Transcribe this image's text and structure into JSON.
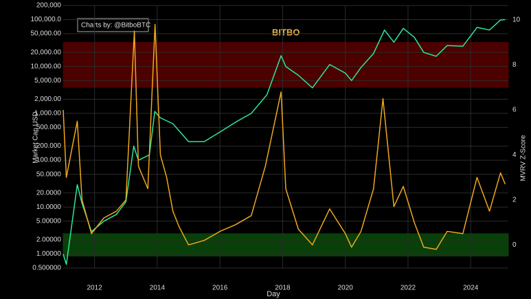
{
  "chart_data": {
    "type": "line",
    "annotation": "Charts by: @BitboBTC",
    "logo": "BITBO",
    "y_label": "Market Cap USD",
    "y2_label": "MVRV Z-Score",
    "x_label": "Day",
    "xlim": [
      2011.0,
      2025.2
    ],
    "xticks": [
      2012,
      2014,
      2016,
      2018,
      2020,
      2022,
      2024
    ],
    "log_y": true,
    "grid": true,
    "ylim": [
      0.5,
      200000
    ],
    "yticks": [
      {
        "value": 0.5,
        "label": "0.500000"
      },
      {
        "value": 1,
        "label": "1.00000"
      },
      {
        "value": 2,
        "label": "2.00000"
      },
      {
        "value": 5,
        "label": "5.00000"
      },
      {
        "value": 10,
        "label": "10.0000"
      },
      {
        "value": 20,
        "label": "20.0000"
      },
      {
        "value": 50,
        "label": "50.0000"
      },
      {
        "value": 100,
        "label": "100.000"
      },
      {
        "value": 200,
        "label": "200.000"
      },
      {
        "value": 500,
        "label": "500.000"
      },
      {
        "value": 1000,
        "label": "1,000.00"
      },
      {
        "value": 2000,
        "label": "2,000.00"
      },
      {
        "value": 5000,
        "label": "5,000.00"
      },
      {
        "value": 10000,
        "label": "10,000.00"
      },
      {
        "value": 20000,
        "label": "20,000.00"
      },
      {
        "value": 50000,
        "label": "50,000.00"
      },
      {
        "value": 100000,
        "label": "100,000.0"
      },
      {
        "value": 200000,
        "label": "200,000"
      }
    ],
    "y2lim": [
      -1.03,
      10.64
    ],
    "y2ticks": [
      0,
      2,
      4,
      6,
      8,
      10
    ],
    "bands": [
      {
        "y2": [
          7,
          9
        ],
        "color": "#5a0000"
      },
      {
        "y2": [
          -0.5,
          0.5
        ],
        "color": "#0b4a0b"
      }
    ],
    "series": [
      {
        "color": "#2ee89a",
        "x": [
          2011.0,
          2011.1,
          2011.45,
          2011.6,
          2011.9,
          2012.3,
          2012.7,
          2013.0,
          2013.25,
          2013.4,
          2013.75,
          2013.92,
          2014.1,
          2014.5,
          2015.0,
          2015.5,
          2016.0,
          2016.5,
          2017.0,
          2017.5,
          2017.95,
          2018.1,
          2018.5,
          2018.95,
          2019.5,
          2020.0,
          2020.2,
          2020.5,
          2020.9,
          2021.25,
          2021.55,
          2021.85,
          2022.2,
          2022.5,
          2022.9,
          2023.25,
          2023.75,
          2024.2,
          2024.6,
          2024.95,
          2025.1
        ],
        "values": [
          1,
          0.6,
          30,
          12,
          3,
          5,
          7,
          13,
          200,
          100,
          130,
          1100,
          800,
          600,
          250,
          250,
          400,
          650,
          1000,
          2500,
          17000,
          10000,
          6500,
          3500,
          11000,
          7200,
          5000,
          9500,
          19000,
          60000,
          33000,
          65000,
          42000,
          20000,
          16500,
          28000,
          27000,
          68000,
          60000,
          98000,
          100000
        ]
      },
      {
        "color": "#f0a81c",
        "axis": "y2",
        "x": [
          2011.0,
          2011.1,
          2011.45,
          2011.6,
          2011.9,
          2012.3,
          2012.7,
          2013.0,
          2013.27,
          2013.4,
          2013.7,
          2013.93,
          2014.1,
          2014.3,
          2014.5,
          2014.7,
          2015.0,
          2015.5,
          2016.0,
          2016.5,
          2017.0,
          2017.45,
          2017.95,
          2018.1,
          2018.5,
          2018.95,
          2019.5,
          2020.0,
          2020.2,
          2020.5,
          2020.9,
          2021.2,
          2021.55,
          2021.85,
          2022.2,
          2022.5,
          2022.9,
          2023.25,
          2023.75,
          2024.2,
          2024.6,
          2024.95,
          2025.1
        ],
        "values": [
          6,
          3,
          5.5,
          2,
          0.5,
          1.2,
          1.5,
          2,
          9.5,
          3.5,
          2.5,
          9.8,
          4,
          3,
          1.5,
          0.8,
          0,
          0.2,
          0.6,
          0.9,
          1.3,
          3.5,
          6.8,
          2.5,
          0.7,
          0,
          1.6,
          0.5,
          -0.1,
          0.6,
          2.5,
          6.5,
          1.7,
          2.6,
          1,
          -0.1,
          -0.2,
          0.6,
          0.5,
          3,
          1.5,
          3.2,
          2.7
        ]
      }
    ]
  }
}
